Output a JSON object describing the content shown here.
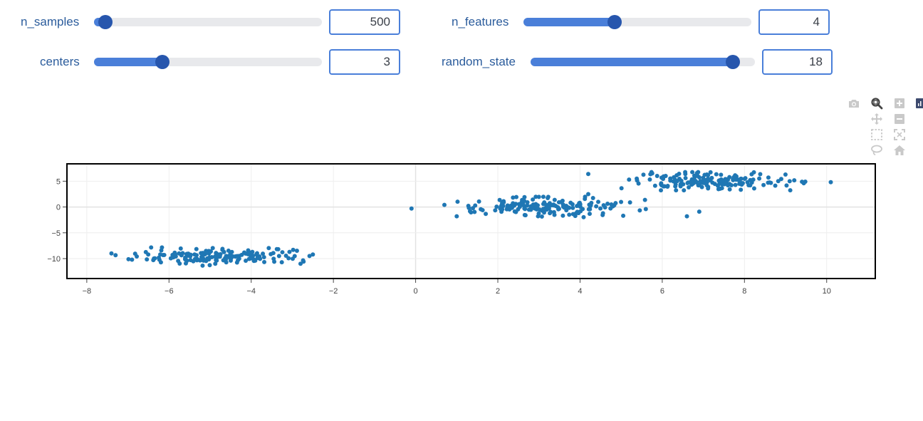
{
  "controls": {
    "n_samples": {
      "label": "n_samples",
      "value": "500",
      "level": 0.05
    },
    "n_features": {
      "label": "n_features",
      "value": "4",
      "level": 0.4
    },
    "centers": {
      "label": "centers",
      "value": "3",
      "level": 0.3
    },
    "random_state": {
      "label": "random_state",
      "value": "18",
      "level": 0.9
    }
  },
  "modebar": {
    "icons": [
      "camera-icon",
      "zoom-icon",
      "zoom-in-icon",
      "plotly-logo",
      "pan-icon",
      "zoom-out-icon",
      "box-select-icon",
      "autoscale-icon",
      "lasso-icon",
      "reset-axes-icon"
    ]
  },
  "colors": {
    "accent": "#4a7fd9",
    "thumb": "#2756ad",
    "marker": "#1f77b4",
    "label": "#2b5c9c"
  },
  "chart_data": {
    "type": "scatter",
    "xlim": [
      -8.5,
      11.2
    ],
    "ylim": [
      -14,
      8.5
    ],
    "x_ticks": [
      -8,
      -6,
      -4,
      -2,
      0,
      2,
      4,
      6,
      8,
      10
    ],
    "x_tick_labels": [
      "−8",
      "−6",
      "−4",
      "−2",
      "0",
      "2",
      "4",
      "6",
      "8",
      "10"
    ],
    "y_ticks": [
      5,
      0,
      -5,
      -10
    ],
    "y_tick_labels": [
      "5",
      "0",
      "−5",
      "−10"
    ],
    "grid": true,
    "marker_color": "#1f77b4",
    "clusters": [
      {
        "center": [
          -4.9,
          -9.6
        ],
        "spread": [
          1.0,
          0.8
        ],
        "count": 166
      },
      {
        "center": [
          3.3,
          0.0
        ],
        "spread": [
          0.95,
          0.9
        ],
        "count": 167
      },
      {
        "center": [
          7.2,
          5.0
        ],
        "spread": [
          0.95,
          0.8
        ],
        "count": 167
      }
    ],
    "outliers": [
      [
        -7.4,
        -9.0
      ],
      [
        -6.9,
        -10.2
      ],
      [
        -2.5,
        -9.2
      ],
      [
        -2.8,
        -11.0
      ],
      [
        -0.1,
        -0.3
      ],
      [
        0.7,
        0.4
      ],
      [
        1.0,
        -1.8
      ],
      [
        4.2,
        6.4
      ],
      [
        4.2,
        2.5
      ],
      [
        5.6,
        -0.4
      ],
      [
        6.9,
        -0.9
      ],
      [
        6.6,
        -1.8
      ],
      [
        10.1,
        4.8
      ],
      [
        9.4,
        4.9
      ],
      [
        9.1,
        5.0
      ]
    ]
  }
}
